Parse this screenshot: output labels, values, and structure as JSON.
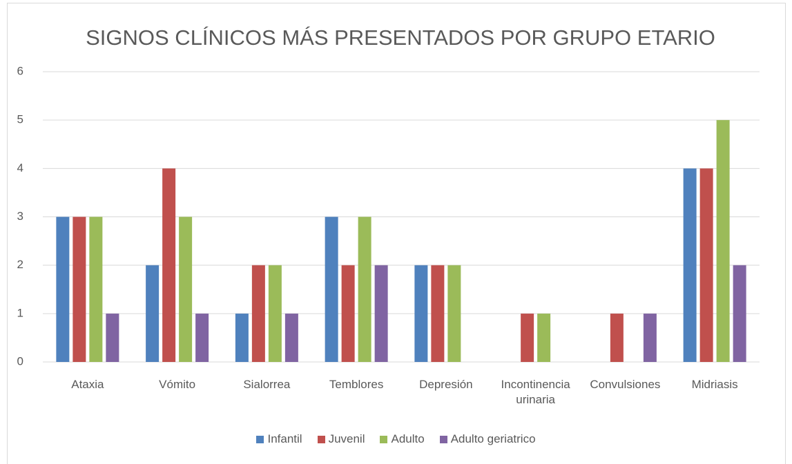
{
  "chart_data": {
    "type": "bar",
    "title": "SIGNOS CLÍNICOS MÁS PRESENTADOS POR GRUPO ETARIO",
    "categories": [
      "Ataxia",
      "Vómito",
      "Sialorrea",
      "Temblores",
      "Depresión",
      "Incontinencia urinaria",
      "Convulsiones",
      "Midriasis"
    ],
    "series": [
      {
        "name": "Infantil",
        "color": "#4f81bd",
        "values": [
          3,
          2,
          1,
          3,
          2,
          0,
          0,
          4
        ]
      },
      {
        "name": "Juvenil",
        "color": "#c0504d",
        "values": [
          3,
          4,
          2,
          2,
          2,
          1,
          1,
          4
        ]
      },
      {
        "name": "Adulto",
        "color": "#9bbb59",
        "values": [
          3,
          3,
          2,
          3,
          2,
          1,
          0,
          5
        ]
      },
      {
        "name": "Adulto geriatrico",
        "color": "#8064a2",
        "values": [
          1,
          1,
          1,
          2,
          0,
          0,
          1,
          2
        ]
      }
    ],
    "ylim": [
      0,
      6
    ],
    "yticks": [
      0,
      1,
      2,
      3,
      4,
      5,
      6
    ],
    "grid": true,
    "legend": "bottom"
  }
}
